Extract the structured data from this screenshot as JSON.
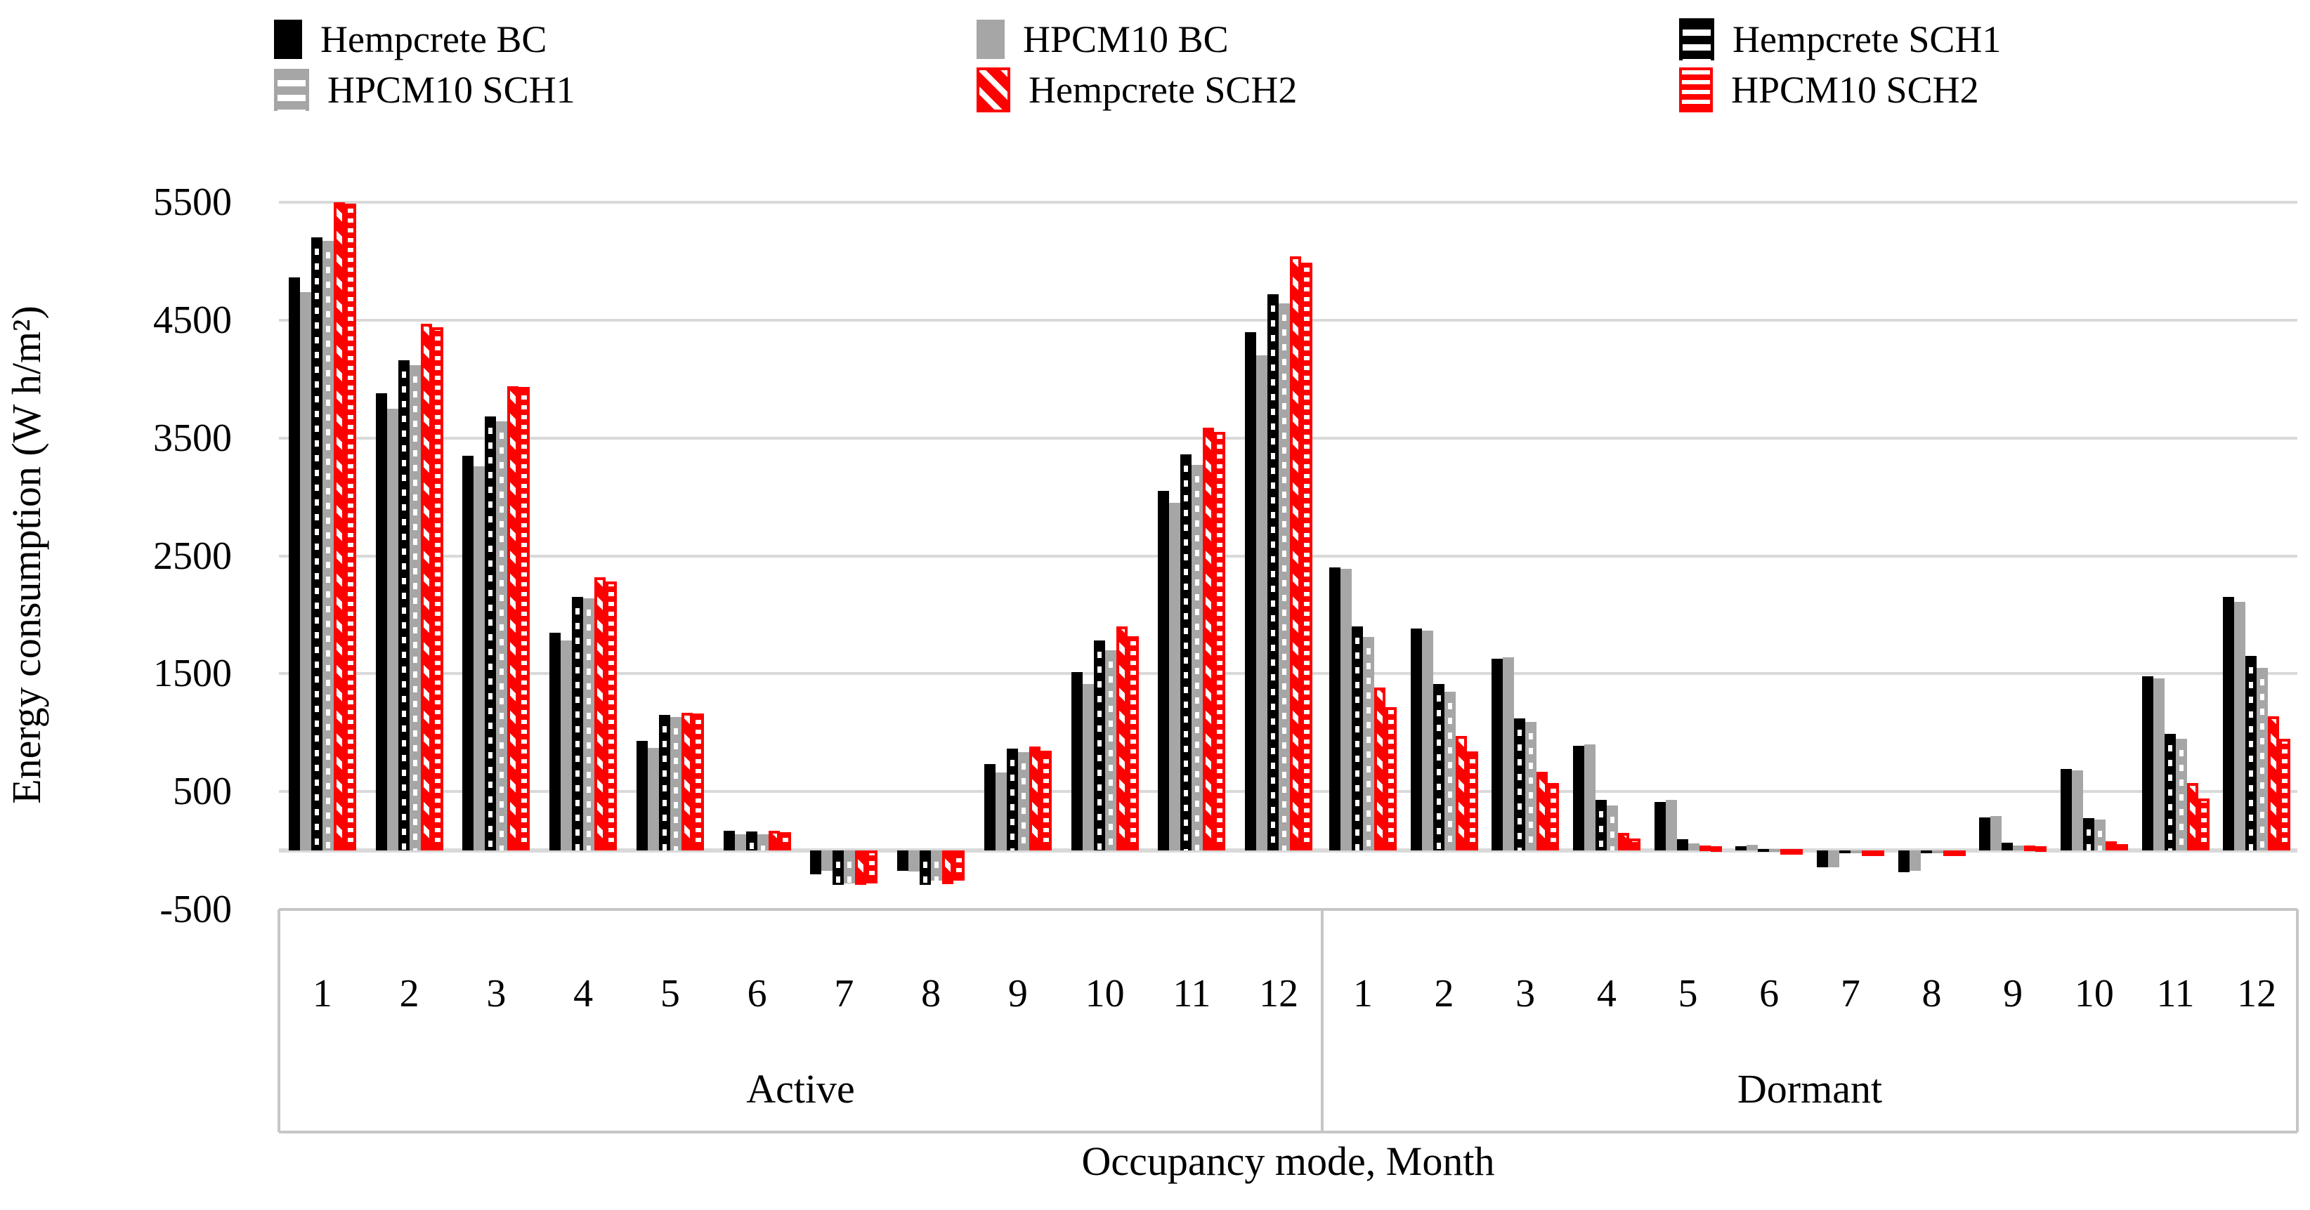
{
  "chart_data": {
    "type": "bar",
    "title": "",
    "ylabel": "Energy consumption (W h/m²)",
    "xlabel": "Occupancy mode, Month",
    "ylim": [
      -500,
      5500
    ],
    "yticks": [
      5500,
      4500,
      3500,
      2500,
      1500,
      500,
      -500
    ],
    "grid": "horizontal",
    "legend_position": "top",
    "sections": [
      {
        "label": "Active",
        "months": [
          "1",
          "2",
          "3",
          "4",
          "5",
          "6",
          "7",
          "8",
          "9",
          "10",
          "11",
          "12"
        ]
      },
      {
        "label": "Dormant",
        "months": [
          "1",
          "2",
          "3",
          "4",
          "5",
          "6",
          "7",
          "8",
          "9",
          "10",
          "11",
          "12"
        ]
      }
    ],
    "series": [
      {
        "name": "Hempcrete BC",
        "pattern": "solid-black",
        "color": "#000000",
        "active": [
          4860,
          3880,
          3350,
          1850,
          930,
          165,
          -200,
          -175,
          735,
          1515,
          3050,
          4400
        ],
        "dormant": [
          2400,
          1885,
          1630,
          890,
          410,
          35,
          -140,
          -185,
          280,
          690,
          1480,
          2150
        ]
      },
      {
        "name": "HPCM10 BC",
        "pattern": "solid-gray",
        "color": "#a6a6a6",
        "active": [
          4740,
          3750,
          3260,
          1780,
          870,
          135,
          -170,
          -180,
          660,
          1415,
          2950,
          4200
        ],
        "dormant": [
          2390,
          1865,
          1640,
          900,
          430,
          50,
          -140,
          -175,
          295,
          680,
          1460,
          2110
        ]
      },
      {
        "name": "Hempcrete SCH1",
        "pattern": "dash-black",
        "color": "#000000",
        "active": [
          5200,
          4160,
          3680,
          2150,
          1150,
          160,
          -290,
          -290,
          865,
          1780,
          3360,
          4720
        ],
        "dormant": [
          1900,
          1410,
          1120,
          430,
          95,
          10,
          -15,
          -25,
          65,
          275,
          990,
          1650
        ]
      },
      {
        "name": "HPCM10 SCH1",
        "pattern": "dash-gray",
        "color": "#a6a6a6",
        "active": [
          5170,
          4120,
          3640,
          2140,
          1130,
          135,
          -280,
          -255,
          835,
          1700,
          3270,
          4640
        ],
        "dormant": [
          1810,
          1350,
          1090,
          380,
          60,
          8,
          -10,
          -15,
          45,
          260,
          950,
          1550
        ]
      },
      {
        "name": "Hempcrete SCH2",
        "pattern": "diag-red",
        "color": "#ff0000",
        "active": [
          5500,
          4470,
          3940,
          2320,
          1170,
          170,
          -290,
          -285,
          885,
          1900,
          3590,
          5040
        ],
        "dormant": [
          1385,
          970,
          670,
          150,
          45,
          8,
          -20,
          -30,
          40,
          80,
          575,
          1140
        ]
      },
      {
        "name": "HPCM10 SCH2",
        "pattern": "check-red",
        "color": "#ff0000",
        "active": [
          5490,
          4440,
          3930,
          2280,
          1160,
          155,
          -280,
          -255,
          845,
          1820,
          3550,
          4990
        ],
        "dormant": [
          1215,
          840,
          570,
          100,
          35,
          6,
          -15,
          -25,
          35,
          55,
          440,
          950
        ]
      }
    ]
  }
}
